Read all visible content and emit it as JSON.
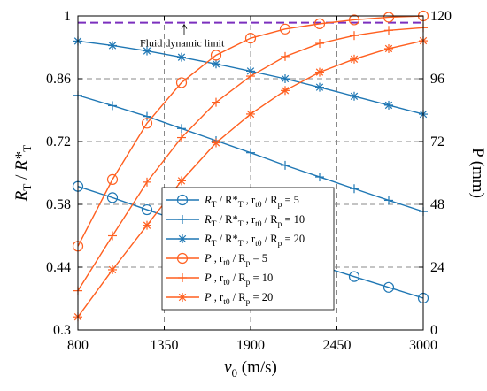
{
  "chart_data": {
    "type": "line",
    "x_axis": {
      "label_main": "v",
      "label_sub": "0",
      "label_unit": " (m/s)",
      "range": [
        800,
        3000
      ],
      "ticks": [
        800,
        1350,
        1900,
        2450,
        3000
      ],
      "tick_labels": [
        "800",
        "1350",
        "1900",
        "2450",
        "3000"
      ]
    },
    "y_left": {
      "label_main": "R",
      "label_sub1": "T",
      "label_mid": " / ",
      "label_star": "R*",
      "label_sub2": "T",
      "range": [
        0.3,
        1.0
      ],
      "ticks": [
        0.3,
        0.44,
        0.58,
        0.72,
        0.86,
        1.0
      ],
      "tick_labels": [
        "0.3",
        "0.44",
        "0.58",
        "0.72",
        "0.86",
        "1"
      ]
    },
    "y_right": {
      "label": "P (mm)",
      "range": [
        0,
        120
      ],
      "ticks": [
        0,
        24,
        48,
        72,
        96,
        120
      ],
      "tick_labels": [
        "0",
        "24",
        "48",
        "72",
        "96",
        "120"
      ]
    },
    "grid": true,
    "fluid_limit": {
      "label": "Fluid dynamic limit",
      "value": 0.985,
      "axis": "left"
    },
    "colors": {
      "blue": "#1f77b4",
      "orange": "#ff5f1f",
      "limit": "#7b2fbe"
    },
    "series": [
      {
        "name_parts": [
          "R",
          "T",
          " / R*",
          "T",
          " , r",
          "t0",
          " / R",
          "p",
          " = 5"
        ],
        "axis": "left",
        "color": "#1f77b4",
        "marker": "circle",
        "x": [
          800,
          1020,
          1240,
          1460,
          1680,
          1900,
          2120,
          2340,
          2560,
          2780,
          3000
        ],
        "values": [
          0.62,
          0.595,
          0.568,
          0.542,
          0.517,
          0.493,
          0.468,
          0.443,
          0.419,
          0.395,
          0.371
        ]
      },
      {
        "name_parts": [
          "R",
          "T",
          " / R*",
          "T",
          " , r",
          "t0",
          " / R",
          "p",
          " = 10"
        ],
        "axis": "left",
        "color": "#1f77b4",
        "marker": "plus",
        "x": [
          800,
          1020,
          1240,
          1460,
          1680,
          1900,
          2120,
          2340,
          2560,
          2780,
          3000
        ],
        "values": [
          0.823,
          0.8,
          0.776,
          0.749,
          0.722,
          0.695,
          0.667,
          0.641,
          0.615,
          0.589,
          0.564
        ]
      },
      {
        "name_parts": [
          "R",
          "T",
          " / R*",
          "T",
          " , r",
          "t0",
          " / R",
          "p",
          " = 20"
        ],
        "axis": "left",
        "color": "#1f77b4",
        "marker": "star",
        "x": [
          800,
          1020,
          1240,
          1460,
          1680,
          1900,
          2120,
          2340,
          2560,
          2780,
          3000
        ],
        "values": [
          0.944,
          0.934,
          0.922,
          0.908,
          0.893,
          0.877,
          0.86,
          0.841,
          0.821,
          0.801,
          0.781
        ]
      },
      {
        "name_parts": [
          "P",
          "",
          " , r",
          "t0",
          " / R",
          "p",
          " = 5"
        ],
        "axis": "right",
        "color": "#ff5f1f",
        "marker": "circle",
        "x": [
          800,
          1020,
          1240,
          1460,
          1680,
          1900,
          2120,
          2340,
          2560,
          2780,
          3000
        ],
        "values": [
          32,
          57.5,
          79,
          94.5,
          105,
          111.5,
          115,
          117,
          118.5,
          119.5,
          120
        ]
      },
      {
        "name_parts": [
          "P",
          "",
          " , r",
          "t0",
          " / R",
          "p",
          " = 10"
        ],
        "axis": "right",
        "color": "#ff5f1f",
        "marker": "plus",
        "x": [
          800,
          1020,
          1240,
          1460,
          1680,
          1900,
          2120,
          2340,
          2560,
          2780,
          3000
        ],
        "values": [
          15,
          36,
          56.5,
          73.5,
          87,
          97,
          104.5,
          109.5,
          112.5,
          114.5,
          115.5
        ]
      },
      {
        "name_parts": [
          "P",
          "",
          " , r",
          "t0",
          " / R",
          "p",
          " = 20"
        ],
        "axis": "right",
        "color": "#ff5f1f",
        "marker": "star",
        "x": [
          800,
          1020,
          1240,
          1460,
          1680,
          1900,
          2120,
          2340,
          2560,
          2780,
          3000
        ],
        "values": [
          5,
          23,
          40,
          57,
          71.5,
          82.5,
          91.5,
          98.5,
          103.5,
          107.5,
          110.5
        ]
      }
    ],
    "legend": {
      "placement": "lower-left-center"
    }
  }
}
